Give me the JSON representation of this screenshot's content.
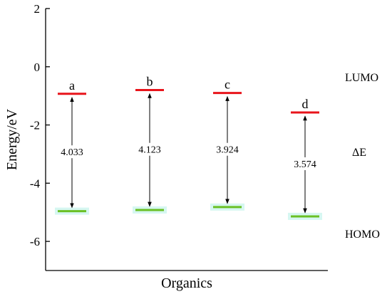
{
  "chart_data": {
    "type": "energy-level diagram",
    "xlabel": "Organics",
    "ylabel": "Energy/eV",
    "ylim": [
      -7.0,
      2.0
    ],
    "yticks": [
      2,
      0,
      -2,
      -4,
      -6
    ],
    "grid": false,
    "categories": [
      "a",
      "b",
      "c",
      "d"
    ],
    "lumo": [
      -0.93,
      -0.8,
      -0.9,
      -1.57
    ],
    "homo": [
      -4.96,
      -4.92,
      -4.82,
      -5.14
    ],
    "gap_labels": [
      "4.033",
      "4.123",
      "3.924",
      "3.574"
    ],
    "series": [
      {
        "name": "LUMO",
        "color": "#e8141b"
      },
      {
        "name": "HOMO",
        "color": "#6ac025"
      }
    ],
    "gap_label": "ΔE",
    "homo_glow_color": "#ccf5ee"
  }
}
